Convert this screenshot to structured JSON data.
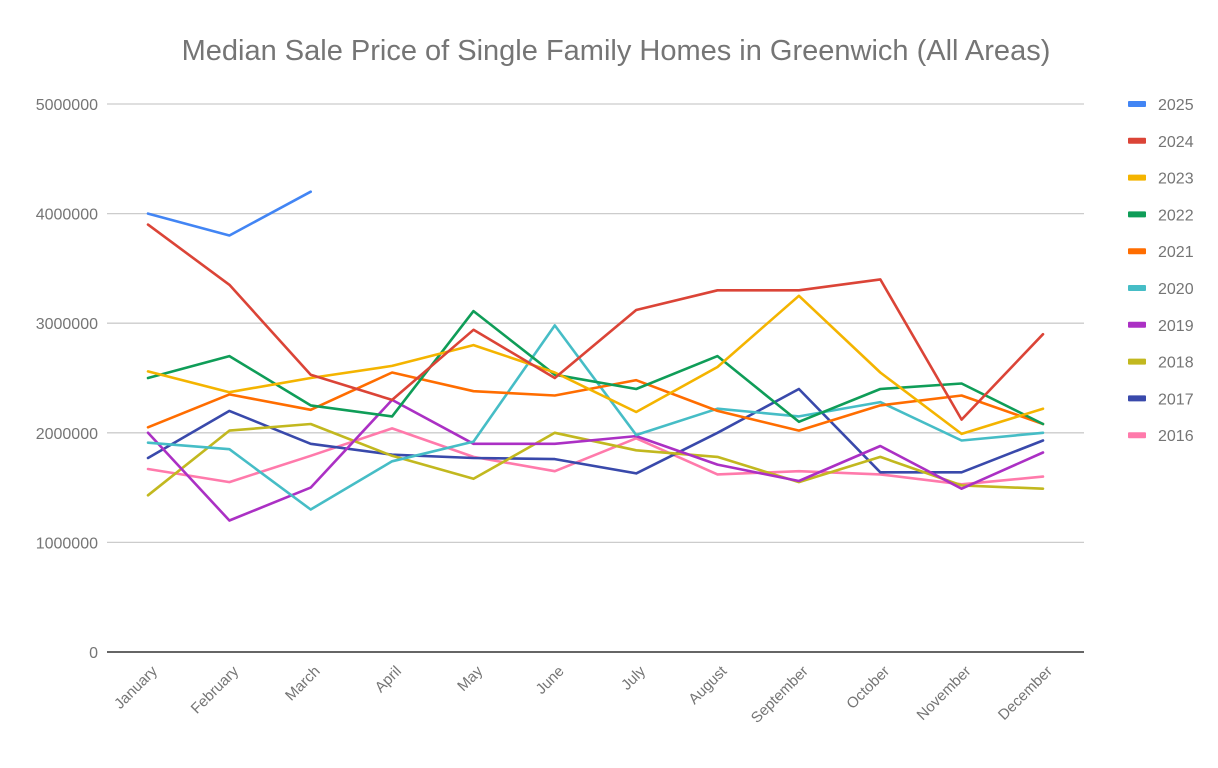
{
  "chart_data": {
    "type": "line",
    "title": "Median Sale Price of Single Family Homes in Greenwich (All Areas)",
    "xlabel": "",
    "ylabel": "",
    "ylim": [
      0,
      5000000
    ],
    "yticks": [
      0,
      1000000,
      2000000,
      3000000,
      4000000,
      5000000
    ],
    "ytick_labels": [
      "0",
      "1000000",
      "2000000",
      "3000000",
      "4000000",
      "5000000"
    ],
    "grid": true,
    "legend_position": "right",
    "categories": [
      "January",
      "February",
      "March",
      "April",
      "May",
      "June",
      "July",
      "August",
      "September",
      "October",
      "November",
      "December"
    ],
    "series": [
      {
        "name": "2025",
        "color": "#4285f4",
        "values": [
          4000000,
          3800000,
          4200000,
          null,
          null,
          null,
          null,
          null,
          null,
          null,
          null,
          null
        ]
      },
      {
        "name": "2024",
        "color": "#db4437",
        "values": [
          3900000,
          3350000,
          2530000,
          2300000,
          2940000,
          2500000,
          3120000,
          3300000,
          3300000,
          3400000,
          2120000,
          2900000
        ]
      },
      {
        "name": "2023",
        "color": "#f4b400",
        "values": [
          2560000,
          2370000,
          2500000,
          2610000,
          2800000,
          2550000,
          2190000,
          2600000,
          3250000,
          2550000,
          1990000,
          2220000
        ]
      },
      {
        "name": "2022",
        "color": "#0f9d58",
        "values": [
          2500000,
          2700000,
          2250000,
          2150000,
          3110000,
          2530000,
          2400000,
          2700000,
          2100000,
          2400000,
          2450000,
          2080000
        ]
      },
      {
        "name": "2021",
        "color": "#ff6d00",
        "values": [
          2050000,
          2350000,
          2210000,
          2550000,
          2380000,
          2340000,
          2480000,
          2200000,
          2020000,
          2250000,
          2340000,
          2080000
        ]
      },
      {
        "name": "2020",
        "color": "#46bdc6",
        "values": [
          1910000,
          1850000,
          1300000,
          1740000,
          1920000,
          2980000,
          1980000,
          2220000,
          2150000,
          2280000,
          1930000,
          2000000
        ]
      },
      {
        "name": "2019",
        "color": "#ab30c4",
        "values": [
          2000000,
          1200000,
          1500000,
          2300000,
          1900000,
          1900000,
          1970000,
          1710000,
          1560000,
          1880000,
          1490000,
          1820000
        ]
      },
      {
        "name": "2018",
        "color": "#c2b81f",
        "values": [
          1430000,
          2020000,
          2080000,
          1790000,
          1580000,
          2000000,
          1840000,
          1780000,
          1550000,
          1780000,
          1520000,
          1490000
        ]
      },
      {
        "name": "2017",
        "color": "#3949ab",
        "values": [
          1770000,
          2200000,
          1900000,
          1800000,
          1770000,
          1760000,
          1630000,
          2000000,
          2400000,
          1640000,
          1640000,
          1930000
        ]
      },
      {
        "name": "2016",
        "color": "#ff7aab",
        "values": [
          1670000,
          1550000,
          1790000,
          2040000,
          1780000,
          1650000,
          1950000,
          1620000,
          1650000,
          1620000,
          1530000,
          1600000
        ]
      }
    ]
  }
}
